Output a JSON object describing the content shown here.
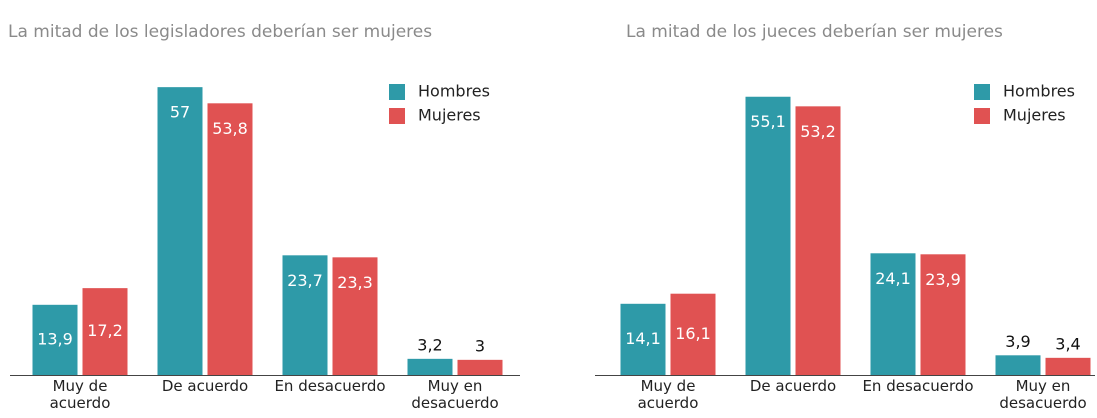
{
  "chart_data": [
    {
      "type": "bar",
      "title": "La mitad de los legisladores deberían ser mujeres",
      "categories": [
        "Muy de acuerdo",
        "De acuerdo",
        "En desacuerdo",
        "Muy en desacuerdo"
      ],
      "series": [
        {
          "name": "Hombres",
          "color": "#2e9aa8",
          "values": [
            13.9,
            57,
            23.7,
            3.2
          ],
          "value_labels": [
            "13,9",
            "57",
            "23,7",
            "3,2"
          ]
        },
        {
          "name": "Mujeres",
          "color": "#e05252",
          "values": [
            17.2,
            53.8,
            23.3,
            3
          ],
          "value_labels": [
            "17,2",
            "53,8",
            "23,3",
            "3"
          ]
        }
      ]
    },
    {
      "type": "bar",
      "title": "La mitad de los jueces deberían ser mujeres",
      "categories": [
        "Muy de acuerdo",
        "De acuerdo",
        "En desacuerdo",
        "Muy en desacuerdo"
      ],
      "series": [
        {
          "name": "Hombres",
          "color": "#2e9aa8",
          "values": [
            14.1,
            55.1,
            24.1,
            3.9
          ],
          "value_labels": [
            "14,1",
            "55,1",
            "24,1",
            "3,9"
          ]
        },
        {
          "name": "Mujeres",
          "color": "#e05252",
          "values": [
            16.1,
            53.2,
            23.9,
            3.4
          ],
          "value_labels": [
            "16,1",
            "53,2",
            "23,9",
            "3,4"
          ]
        }
      ]
    }
  ]
}
